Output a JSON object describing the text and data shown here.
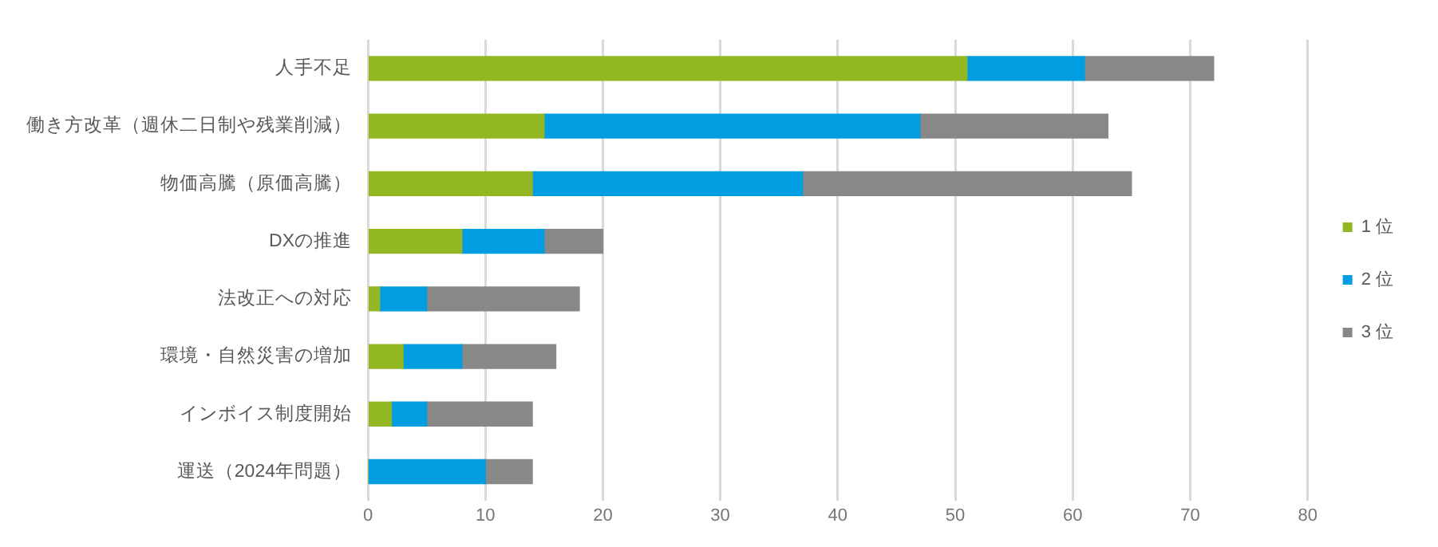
{
  "chart_data": {
    "type": "bar",
    "orientation": "horizontal",
    "stacked": true,
    "categories": [
      "人手不足",
      "働き方改革（週休二日制や残業削減）",
      "物価高騰（原価高騰）",
      "DXの推進",
      "法改正への対応",
      "環境・自然災害の増加",
      "インボイス制度開始",
      "運送（2024年問題）"
    ],
    "series": [
      {
        "name": "1 位",
        "color": "#92b723",
        "values": [
          51,
          15,
          14,
          8,
          1,
          3,
          2,
          0
        ]
      },
      {
        "name": "2 位",
        "color": "#009de0",
        "values": [
          10,
          32,
          23,
          7,
          4,
          5,
          3,
          10
        ]
      },
      {
        "name": "3 位",
        "color": "#888888",
        "values": [
          11,
          16,
          28,
          5,
          13,
          8,
          9,
          4
        ]
      }
    ],
    "xlim": [
      0,
      80
    ],
    "xticks": [
      0,
      10,
      20,
      30,
      40,
      50,
      60,
      70,
      80
    ],
    "grid": "x",
    "legend": "right"
  }
}
